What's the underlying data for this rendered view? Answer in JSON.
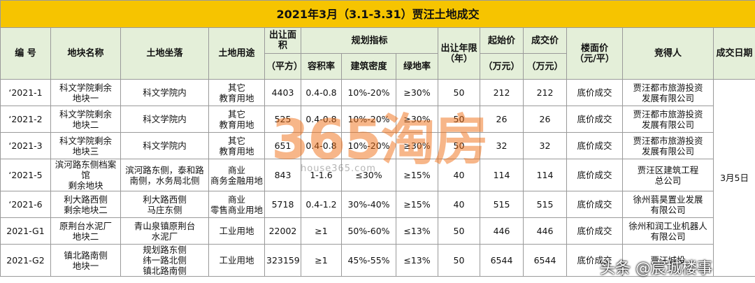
{
  "title": "2021年3月（3.1-3.31）贾汪土地成交",
  "header": {
    "id": "编 号",
    "name": "地块名称",
    "location": "土地坐落",
    "use": "土地用途",
    "area": "出让面积",
    "area_unit": "（平方）",
    "plan": "规划指标",
    "far": "容积率",
    "density": "建筑密度",
    "green": "绿地率",
    "years": "出让年限\n（年）",
    "start": "起始价",
    "start_unit": "（万元）",
    "deal": "成交价",
    "deal_unit": "（万元）",
    "floor": "楼面价\n（元/平）",
    "winner": "竞得人",
    "date": "成交日期"
  },
  "table": {
    "date": "3月5日",
    "rows": [
      [
        "‘2021-1",
        "科文学院剩余\n地块一",
        "科文学院内",
        "其它\n教育用地",
        "4403",
        "0.4-0.8",
        "10%-20%",
        "≥30%",
        "50",
        "212",
        "212",
        "底价成交",
        "贾汪都市旅游投资\n发展有限公司"
      ],
      [
        "‘2021-2",
        "科文学院剩余\n地块二",
        "科文学院内",
        "其它\n教育用地",
        "525",
        "0.4-0.8",
        "10%-20%",
        "≥30%",
        "50",
        "26",
        "26",
        "底价成交",
        "贾汪都市旅游投资\n发展有限公司"
      ],
      [
        "‘2021-3",
        "科文学院剩余\n地块三",
        "科文学院内",
        "其它\n教育用地",
        "651",
        "0.4-0.8",
        "10%-20%",
        "≥30%",
        "50",
        "32",
        "32",
        "底价成交",
        "贾汪都市旅游投资\n发展有限公司"
      ],
      [
        "‘2021-5",
        "滨河路东侧档案馆\n剩余地块",
        "滨河路东侧，泰和路\n南侧，水务局北侧",
        "商业\n商务金融用地",
        "843",
        "1-1.6",
        "≤30%",
        "≥15%",
        "40",
        "114",
        "114",
        "底价成交",
        "贾汪区建筑工程\n总公司"
      ],
      [
        "‘2021-6",
        "利大路西侧\n剩余地块二",
        "利大路西侧\n马庄东侧",
        "商业\n零售商业用地",
        "5718",
        "0.4-1.2",
        "30%-40%",
        "≥15%",
        "40",
        "515",
        "515",
        "底价成交",
        "徐州蓊昊置业发展\n有限公司"
      ],
      [
        "2021-G1",
        "原荆台水泥厂\n地块二",
        "青山泉镇原荆台\n水泥厂",
        "工业用地",
        "22002",
        "≥1",
        "50%-60%",
        "≤13%",
        "50",
        "446",
        "446",
        "底价成交",
        "徐州和润工业机器人\n有限公司"
      ],
      [
        "2021-G2",
        "镇北路南侧\n地块一",
        "规划路东侧\n纬一路北侧\n镇北路南侧",
        "工业用地",
        "323159",
        "≥1",
        "45%-55%",
        "≤13%",
        "50",
        "6544",
        "6544",
        "底价成交",
        "贾汪城投"
      ]
    ]
  },
  "watermarks": [
    "365淘房",
    "house365.com",
    "头条 @宸城楼事"
  ]
}
